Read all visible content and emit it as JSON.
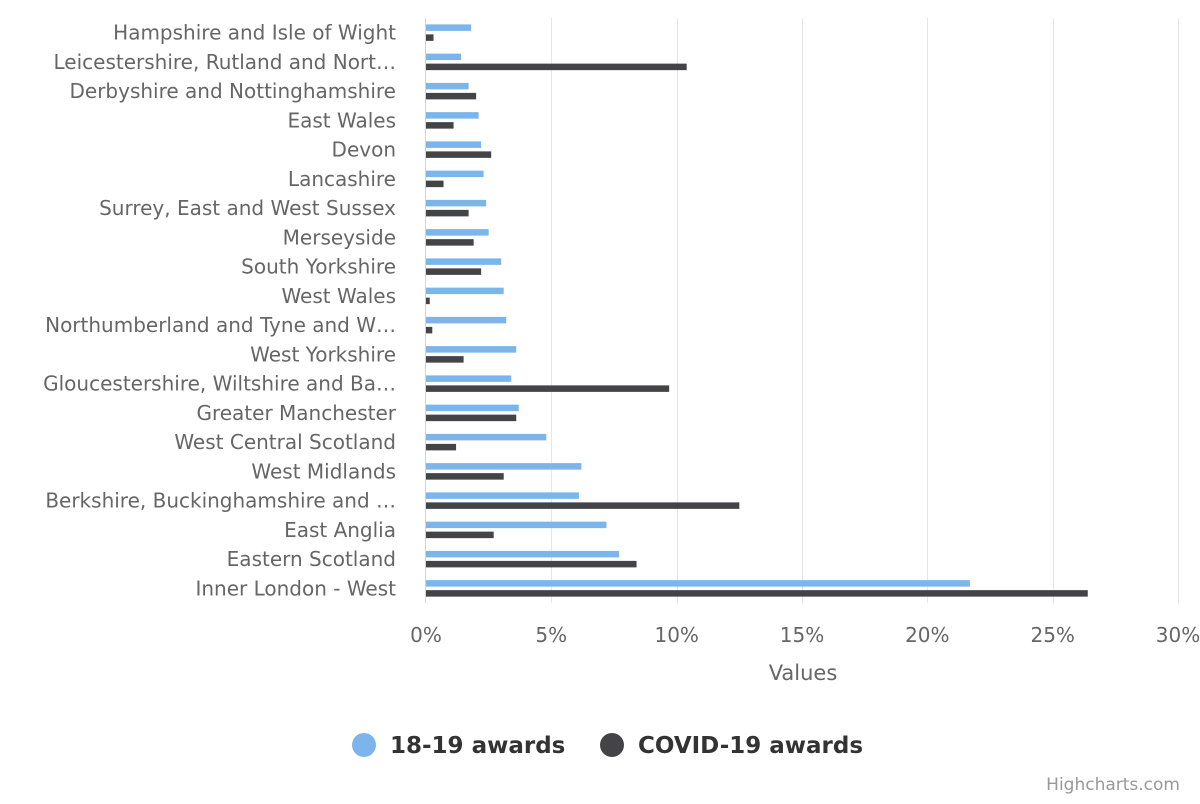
{
  "chart_data": {
    "type": "bar",
    "orientation": "horizontal",
    "title": "",
    "xlabel": "",
    "ylabel": "Values",
    "xlim": [
      0,
      30
    ],
    "value_suffix": "%",
    "ticks": [
      "0%",
      "5%",
      "10%",
      "15%",
      "20%",
      "25%",
      "30%"
    ],
    "tick_values": [
      0,
      5,
      10,
      15,
      20,
      25,
      30
    ],
    "grid": true,
    "legend_position": "bottom-center",
    "categories": [
      "Hampshire and Isle of Wight",
      "Leicestershire, Rutland and Nort…",
      "Derbyshire and Nottinghamshire",
      "East Wales",
      "Devon",
      "Lancashire",
      "Surrey, East and West Sussex",
      "Merseyside",
      "South Yorkshire",
      "West Wales",
      "Northumberland and Tyne and W…",
      "West Yorkshire",
      "Gloucestershire, Wiltshire and Ba…",
      "Greater Manchester",
      "West Central Scotland",
      "West Midlands",
      "Berkshire, Buckinghamshire and …",
      "East Anglia",
      "Eastern Scotland",
      "Inner London - West"
    ],
    "series": [
      {
        "name": "18-19 awards",
        "color": "#7cb5ec",
        "values": [
          1.8,
          1.4,
          1.7,
          2.1,
          2.2,
          2.3,
          2.4,
          2.5,
          3.0,
          3.1,
          3.2,
          3.6,
          3.4,
          3.7,
          4.8,
          6.2,
          6.1,
          7.2,
          7.7,
          21.7
        ]
      },
      {
        "name": "COVID-19 awards",
        "color": "#434348",
        "values": [
          0.3,
          10.4,
          2.0,
          1.1,
          2.6,
          0.7,
          1.7,
          1.9,
          2.2,
          0.15,
          0.25,
          1.5,
          9.7,
          3.6,
          1.2,
          3.1,
          12.5,
          2.7,
          8.4,
          26.4
        ]
      }
    ]
  },
  "credits": "Highcharts.com",
  "colors": {
    "grid": "#e6e6e6",
    "axis_line": "#ccd6eb",
    "text": "#666666"
  }
}
